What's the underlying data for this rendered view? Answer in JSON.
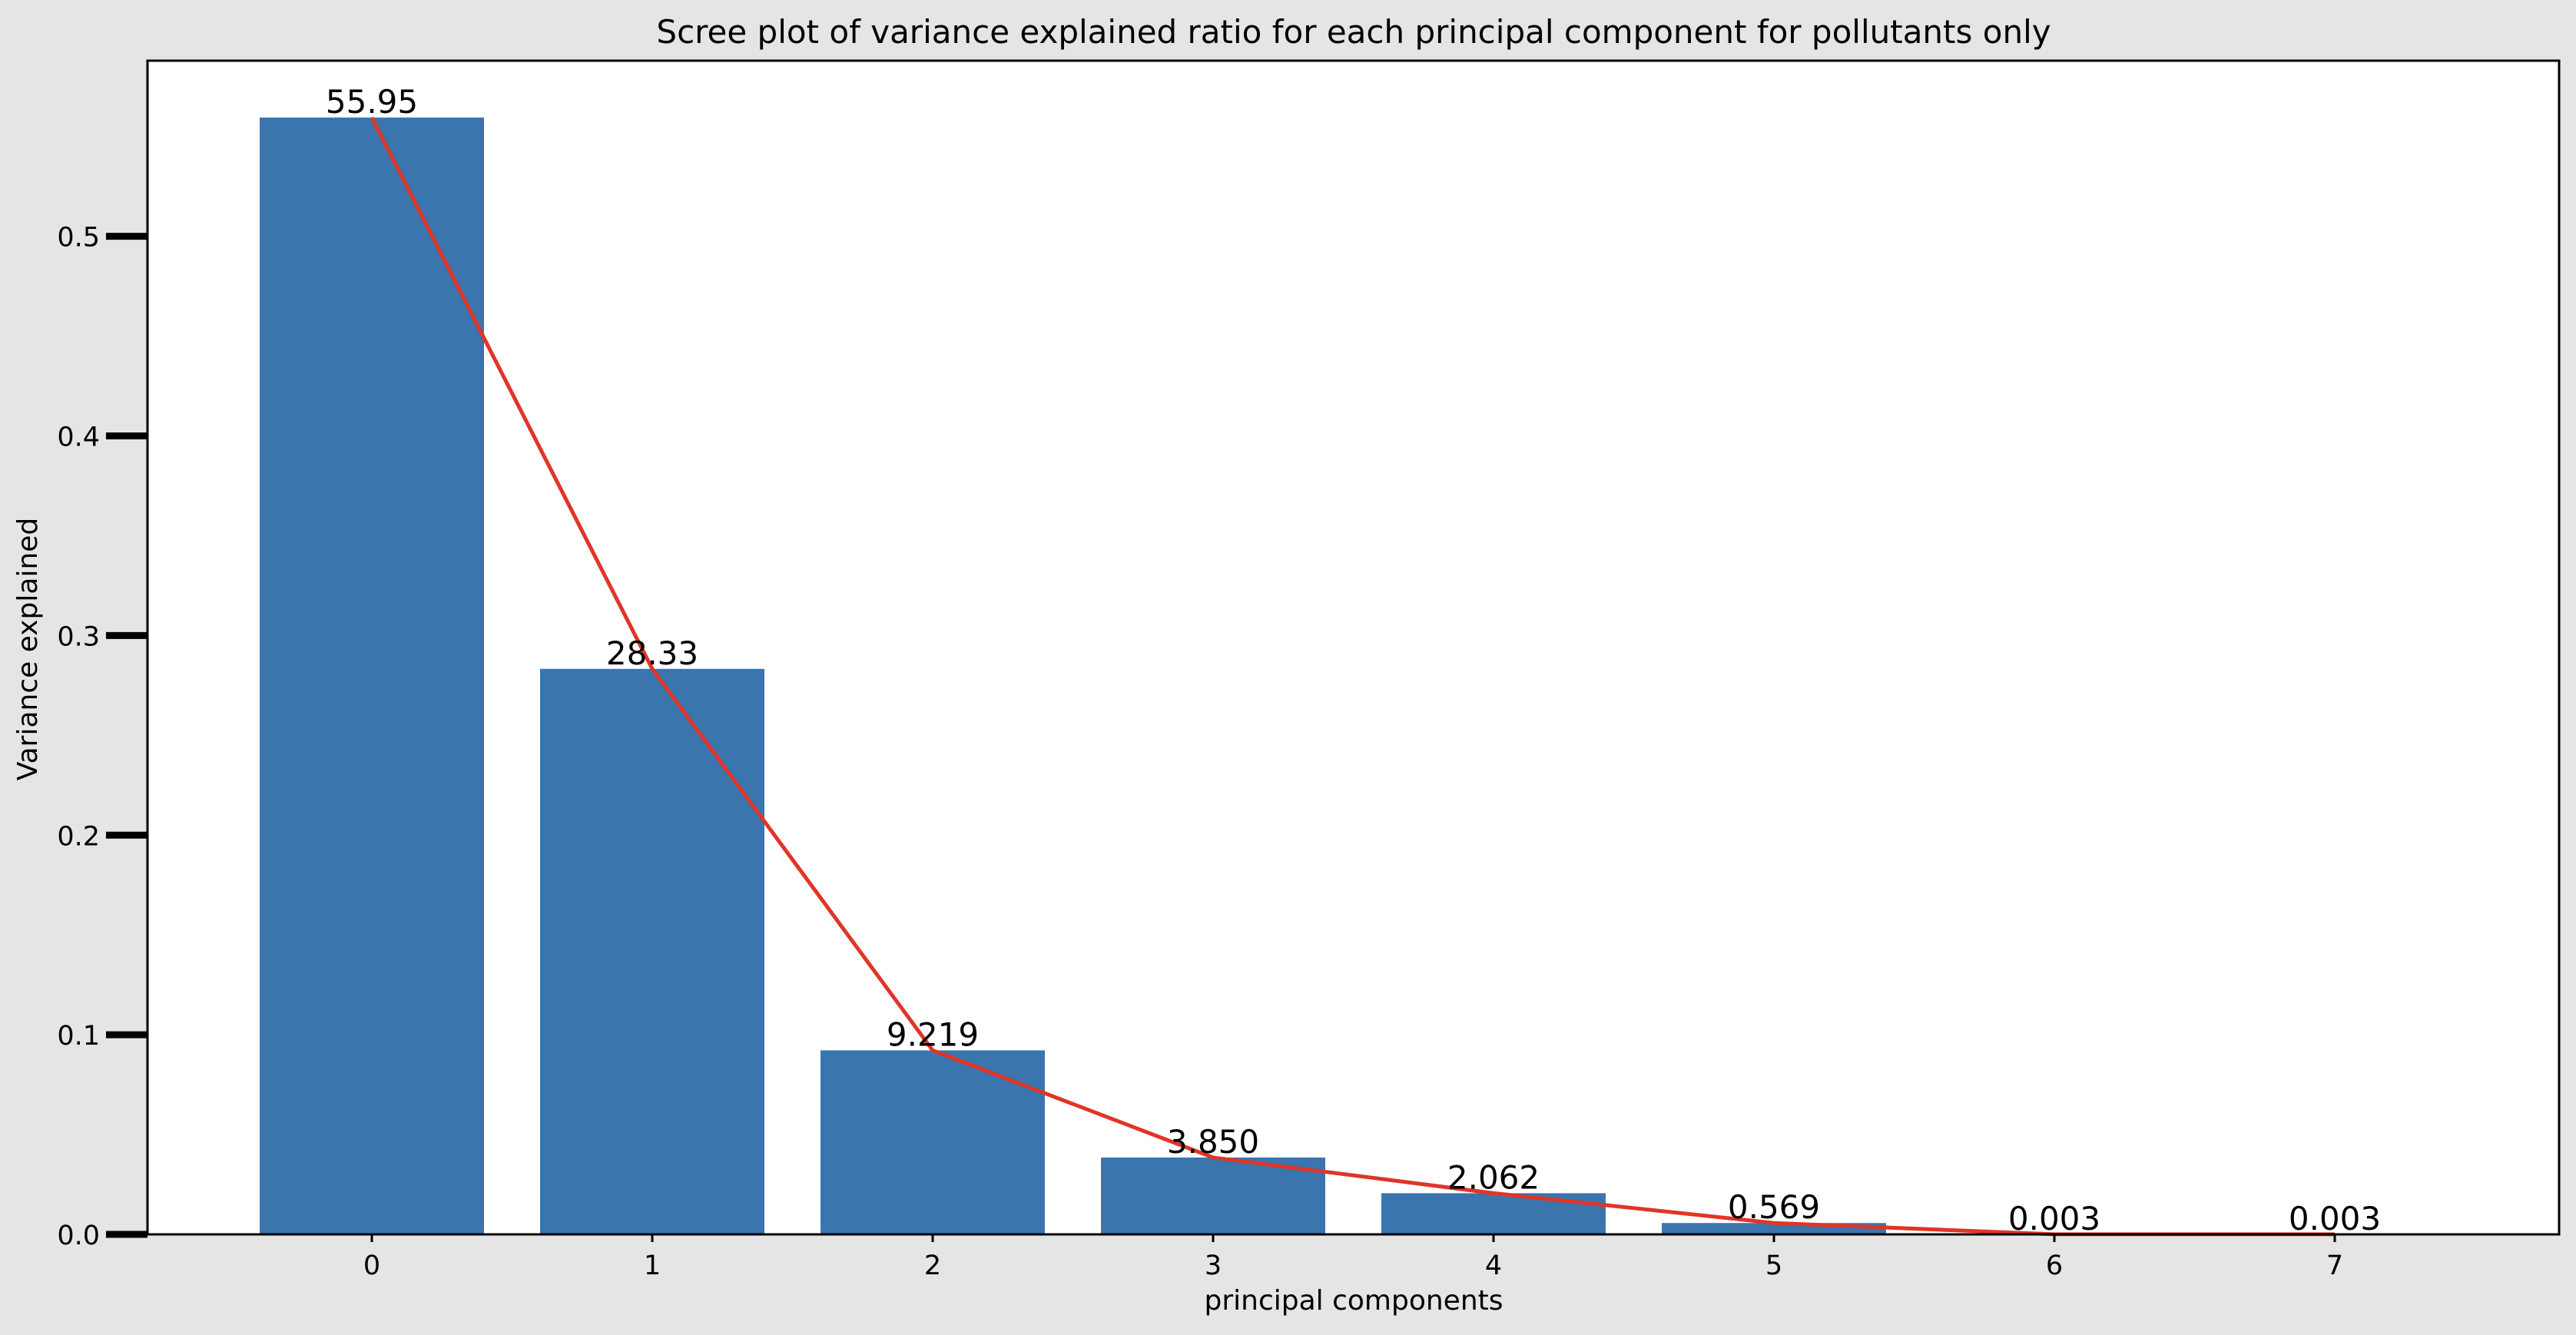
{
  "colors": {
    "figure_background": "#e5e5e5",
    "plot_background": "#ffffff",
    "bar": "#3a75ae",
    "line": "#e03527",
    "axis": "#000000"
  },
  "chart_data": {
    "type": "bar",
    "title": "Scree plot of variance explained ratio for each principal component for pollutants only",
    "xlabel": "principal components",
    "ylabel": "Variance explained",
    "categories": [
      "0",
      "1",
      "2",
      "3",
      "4",
      "5",
      "6",
      "7"
    ],
    "values": [
      0.5595,
      0.2833,
      0.09219,
      0.0385,
      0.02062,
      0.00569,
      3e-05,
      3e-05
    ],
    "bar_labels": [
      "55.95",
      "28.33",
      "9.219",
      "3.850",
      "2.062",
      "0.569",
      "0.003",
      "0.003"
    ],
    "overlay_line": {
      "type": "line",
      "values": [
        0.5595,
        0.2833,
        0.09219,
        0.0385,
        0.02062,
        0.00569,
        3e-05,
        3e-05
      ]
    },
    "xlim": [
      -0.8,
      7.8
    ],
    "ylim": [
      0,
      0.588
    ],
    "yticks": [
      0.0,
      0.1,
      0.2,
      0.3,
      0.4,
      0.5
    ],
    "ytick_labels": [
      "0.0",
      "0.1",
      "0.2",
      "0.3",
      "0.4",
      "0.5"
    ],
    "xtick_labels": [
      "0",
      "1",
      "2",
      "3",
      "4",
      "5",
      "6",
      "7"
    ],
    "grid": false,
    "legend": "none"
  }
}
